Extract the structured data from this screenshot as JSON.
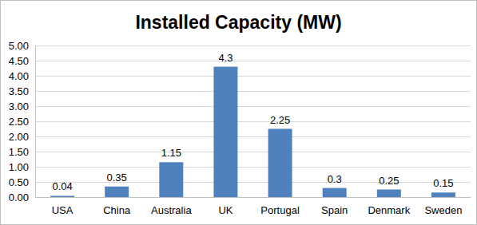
{
  "chart_data": {
    "type": "bar",
    "title": "Installed Capacity (MW)",
    "categories": [
      "USA",
      "China",
      "Australia",
      "UK",
      "Portugal",
      "Spain",
      "Denmark",
      "Sweden"
    ],
    "values": [
      0.04,
      0.35,
      1.15,
      4.3,
      2.25,
      0.3,
      0.25,
      0.15
    ],
    "color": "#4f81bd",
    "ylim": [
      0,
      5
    ],
    "yticks": [
      {
        "value": 0,
        "label": "0.00"
      },
      {
        "value": 0.5,
        "label": "0.50"
      },
      {
        "value": 1,
        "label": "1.00"
      },
      {
        "value": 1.5,
        "label": "1.50"
      },
      {
        "value": 2,
        "label": "2.00"
      },
      {
        "value": 2.5,
        "label": "2.50"
      },
      {
        "value": 3,
        "label": "3.00"
      },
      {
        "value": 3.5,
        "label": "3.50"
      },
      {
        "value": 4,
        "label": "4.00"
      },
      {
        "value": 4.5,
        "label": "4.50"
      },
      {
        "value": 5,
        "label": "5.00"
      }
    ],
    "grid": true,
    "data_labels": true
  }
}
